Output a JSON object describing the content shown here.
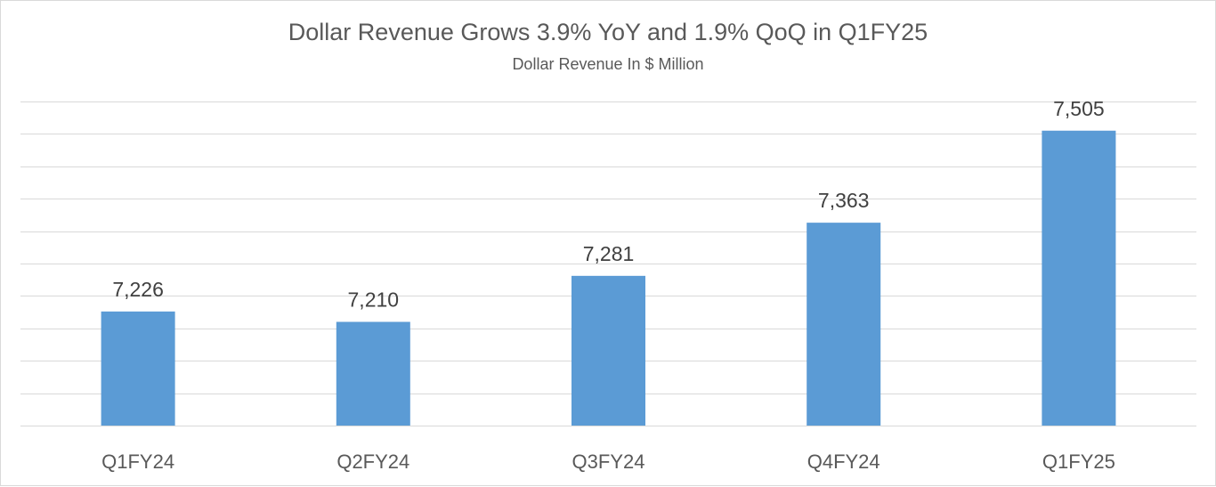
{
  "chart_data": {
    "type": "bar",
    "title": "Dollar Revenue Grows 3.9% YoY and 1.9% QoQ in Q1FY25",
    "subtitle": "Dollar Revenue In $ Million",
    "categories": [
      "Q1FY24",
      "Q2FY24",
      "Q3FY24",
      "Q4FY24",
      "Q1FY25"
    ],
    "values": [
      7226,
      7210,
      7281,
      7363,
      7505
    ],
    "data_labels": [
      "7,226",
      "7,210",
      "7,281",
      "7,363",
      "7,505"
    ],
    "ylim": [
      7050,
      7550
    ],
    "grid": true,
    "legend": "none",
    "bar_color": "#5B9BD5",
    "gridline_color": "#d9d9d9"
  }
}
